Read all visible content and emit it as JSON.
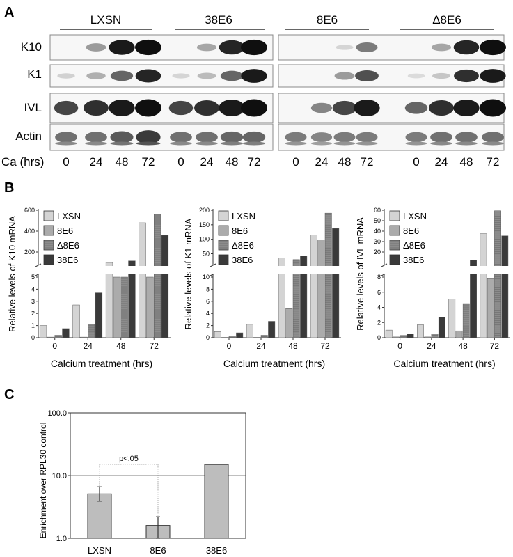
{
  "panelA": {
    "letter": "A",
    "groups": [
      "LXSN",
      "38E6",
      "8E6",
      "Δ8E6"
    ],
    "rows": [
      "K10",
      "K1",
      "IVL",
      "Actin"
    ],
    "ca_label": "Ca (hrs)",
    "timepoints": [
      "0",
      "24",
      "48",
      "72"
    ],
    "band_intensity": {
      "K10": [
        [
          0,
          0.35,
          0.95,
          1.0
        ],
        [
          0,
          0.3,
          0.9,
          1.0
        ],
        [
          0,
          0,
          0.08,
          0.5
        ],
        [
          0,
          0.3,
          0.9,
          1.0
        ]
      ],
      "K1": [
        [
          0.1,
          0.25,
          0.6,
          0.9
        ],
        [
          0.08,
          0.2,
          0.6,
          0.95
        ],
        [
          0,
          0,
          0.35,
          0.7
        ],
        [
          0.05,
          0.15,
          0.85,
          0.95
        ]
      ],
      "IVL": [
        [
          0.75,
          0.85,
          0.95,
          1.0
        ],
        [
          0.75,
          0.85,
          0.95,
          1.0
        ],
        [
          0,
          0.45,
          0.75,
          0.95
        ],
        [
          0.6,
          0.85,
          0.95,
          1.0
        ]
      ],
      "Actin": [
        [
          0.55,
          0.55,
          0.65,
          0.8
        ],
        [
          0.55,
          0.55,
          0.6,
          0.6
        ],
        [
          0.5,
          0.45,
          0.5,
          0.5
        ],
        [
          0.5,
          0.55,
          0.55,
          0.55
        ]
      ]
    }
  },
  "panelB": {
    "letter": "B",
    "legend": [
      "LXSN",
      "8E6",
      "Δ8E6",
      "38E6"
    ],
    "series_colors": [
      "#d4d4d4",
      "#ababab",
      "#8c8c8c",
      "#3a3a3a"
    ],
    "xlabel": "Calcium treatment (hrs)",
    "categories": [
      "0",
      "24",
      "48",
      "72"
    ],
    "charts": [
      {
        "ylabel": "Relative levels of K10 mRNA",
        "lower_ticks": [
          "0",
          "1",
          "2",
          "3",
          "4",
          "5"
        ],
        "upper_ticks": [
          "200",
          "400",
          "600"
        ],
        "lower_max": 5,
        "upper_min": 100,
        "upper_max": 600,
        "values": {
          "LXSN": [
            1.0,
            2.7,
            100,
            480
          ],
          "8E6": [
            0.05,
            0.05,
            55,
            60
          ],
          "Δ8E6": [
            0.2,
            1.1,
            95,
            560
          ],
          "38E6": [
            0.75,
            3.7,
            115,
            360
          ]
        }
      },
      {
        "ylabel": "Relative levels of K1 mRNA",
        "lower_ticks": [
          "0",
          "2",
          "4",
          "6",
          "8",
          "10"
        ],
        "upper_ticks": [
          "50",
          "100",
          "150",
          "200"
        ],
        "lower_max": 10,
        "upper_min": 20,
        "upper_max": 200,
        "values": {
          "LXSN": [
            1.0,
            2.2,
            35,
            115
          ],
          "8E6": [
            0.05,
            0.05,
            4.8,
            98
          ],
          "Δ8E6": [
            0.3,
            0.4,
            30,
            190
          ],
          "38E6": [
            0.8,
            2.7,
            43,
            137
          ]
        }
      },
      {
        "ylabel": "Relative levels of IVL mRNA",
        "lower_ticks": [
          "0",
          "2",
          "4",
          "6",
          "8"
        ],
        "upper_ticks": [
          "20",
          "30",
          "40",
          "50",
          "60"
        ],
        "lower_max": 8,
        "upper_min": 10,
        "upper_max": 60,
        "values": {
          "LXSN": [
            1.0,
            1.7,
            5.1,
            37.5
          ],
          "8E6": [
            0.1,
            0.1,
            0.9,
            7.8
          ],
          "Δ8E6": [
            0.3,
            0.5,
            4.5,
            59.5
          ],
          "38E6": [
            0.5,
            2.7,
            12.5,
            35.5
          ]
        }
      }
    ]
  },
  "panelC": {
    "letter": "C",
    "ylabel": "Enrichment over RPL30 control",
    "yticks": [
      "1.0",
      "10.0",
      "100.0"
    ],
    "annotation": "p<.05",
    "chart_data": {
      "type": "bar",
      "categories": [
        "LXSN",
        "8E6",
        "38E6"
      ],
      "values": [
        5.1,
        1.6,
        15.0
      ],
      "error_low": [
        3.9,
        1.0,
        null
      ],
      "error_high": [
        6.6,
        2.2,
        null
      ],
      "yscale": "log",
      "ylim": [
        1,
        100
      ]
    }
  }
}
